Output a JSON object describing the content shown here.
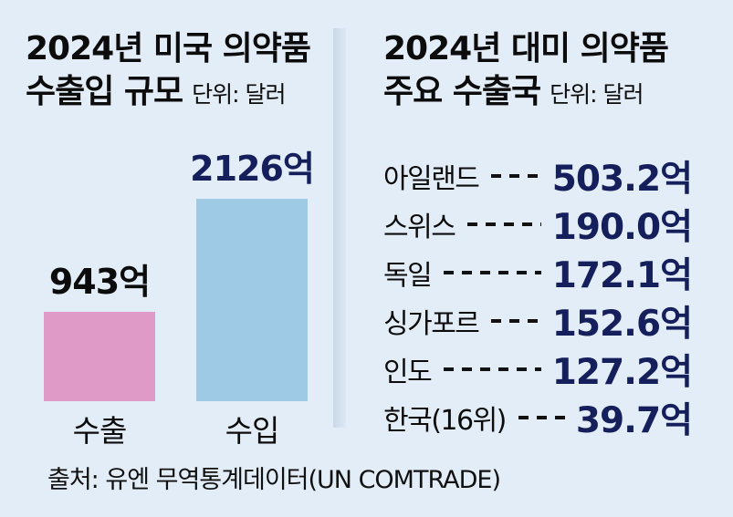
{
  "colors": {
    "background": "#e3edf7",
    "navy": "#151f5c",
    "black": "#0c0c0c",
    "export_bar": "#e09ac8",
    "import_bar": "#9ecae6",
    "divider": "#cbd8ea"
  },
  "left_panel": {
    "title_line1": "2024년 미국 의약품",
    "title_line2": "수출입 규모",
    "unit_label": "단위: 달러",
    "bars": [
      {
        "category": "수출",
        "value_label": "943억"
      },
      {
        "category": "수입",
        "value_label": "2126억"
      }
    ]
  },
  "right_panel": {
    "title_line1": "2024년 대미 의약품",
    "title_line2": "주요 수출국",
    "unit_label": "단위: 달러",
    "rows": [
      {
        "country": "아일랜드",
        "value_label": "503.2억"
      },
      {
        "country": "스위스",
        "value_label": "190.0억"
      },
      {
        "country": "독일",
        "value_label": "172.1억"
      },
      {
        "country": "싱가포르",
        "value_label": "152.6억"
      },
      {
        "country": "인도",
        "value_label": "127.2억"
      },
      {
        "country": "한국(16위)",
        "value_label": "39.7억"
      }
    ]
  },
  "footer": {
    "source": "출처: 유엔 무역통계데이터(UN COMTRADE)"
  },
  "chart_data": [
    {
      "type": "bar",
      "title": "2024년 미국 의약품 수출입 규모",
      "unit": "억 달러",
      "categories": [
        "수출",
        "수입"
      ],
      "values": [
        943,
        2126
      ],
      "data_labels": [
        "943억",
        "2126억"
      ],
      "bar_colors": [
        "#e09ac8",
        "#9ecae6"
      ],
      "label_colors": [
        "#0c0c0c",
        "#151f5c"
      ],
      "ylim": [
        0,
        2126
      ],
      "grid": false,
      "legend": false
    },
    {
      "type": "table",
      "title": "2024년 대미 의약품 주요 수출국",
      "unit": "억 달러",
      "categories": [
        "아일랜드",
        "스위스",
        "독일",
        "싱가포르",
        "인도",
        "한국(16위)"
      ],
      "values": [
        503.2,
        190.0,
        172.1,
        152.6,
        127.2,
        39.7
      ],
      "data_labels": [
        "503.2억",
        "190.0억",
        "172.1억",
        "152.6억",
        "127.2억",
        "39.7억"
      ]
    }
  ]
}
